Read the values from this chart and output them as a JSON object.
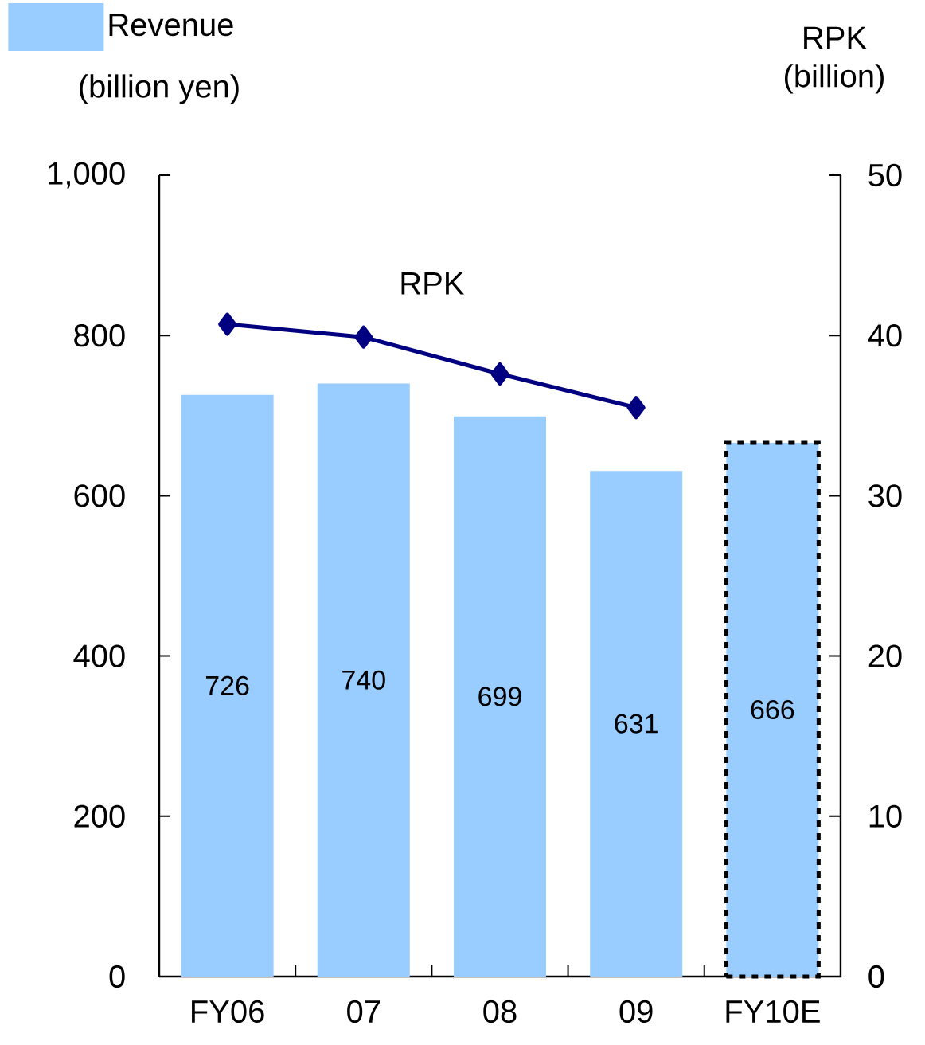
{
  "chart_data": {
    "type": "bar",
    "categories": [
      "FY06",
      "07",
      "08",
      "09",
      "FY10E"
    ],
    "ylabel": "(billion yen)",
    "y2label": "RPK (billion)",
    "ylim": [
      0,
      1000
    ],
    "yticks": [
      0,
      200,
      400,
      600,
      800,
      {
        "value": 1000,
        "label": "1,000"
      }
    ],
    "y2lim": [
      0,
      50
    ],
    "y2ticks": [
      0,
      10,
      20,
      30,
      40,
      50
    ],
    "legend": "top left",
    "series": [
      {
        "name": "Revenue",
        "color": "#99ccff",
        "values": [
          726,
          740,
          699,
          631,
          null
        ],
        "value_labels": [
          "726",
          "740",
          "699",
          "631",
          null
        ]
      },
      {
        "color": "#99ccff",
        "line_style": "dashed",
        "values": [
          null,
          null,
          null,
          null,
          666
        ],
        "value_labels": [
          null,
          null,
          null,
          null,
          "666"
        ]
      },
      {
        "name": "RPK",
        "type": "line",
        "axis": "y2",
        "color": "#000080",
        "marker": "diamond",
        "values": [
          40.7,
          39.9,
          37.6,
          35.5,
          null
        ]
      }
    ]
  }
}
